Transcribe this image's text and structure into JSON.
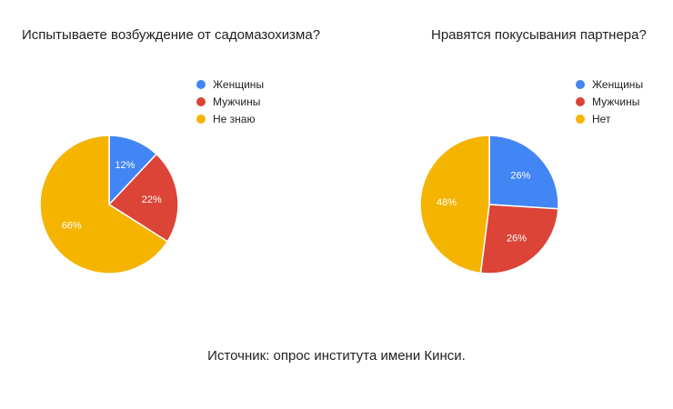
{
  "colors": {
    "blue": "#4285f4",
    "red": "#db4437",
    "yellow": "#f4b400"
  },
  "chart_data": [
    {
      "type": "pie",
      "title": "Испытываете возбуждение от садомазохизма?",
      "legend_position": "right",
      "slices": [
        {
          "label": "Женщины",
          "value": 12,
          "display": "12%",
          "color": "#4285f4"
        },
        {
          "label": "Мужчины",
          "value": 22,
          "display": "22%",
          "color": "#db4437"
        },
        {
          "label": "Не знаю",
          "value": 66,
          "display": "66%",
          "color": "#f4b400"
        }
      ]
    },
    {
      "type": "pie",
      "title": "Нравятся покусывания партнера?",
      "legend_position": "right",
      "slices": [
        {
          "label": "Женщины",
          "value": 26,
          "display": "26%",
          "color": "#4285f4"
        },
        {
          "label": "Мужчины",
          "value": 26,
          "display": "26%",
          "color": "#db4437"
        },
        {
          "label": "Нет",
          "value": 48,
          "display": "48%",
          "color": "#f4b400"
        }
      ]
    }
  ],
  "source": "Источник: опрос института имени Кинси."
}
